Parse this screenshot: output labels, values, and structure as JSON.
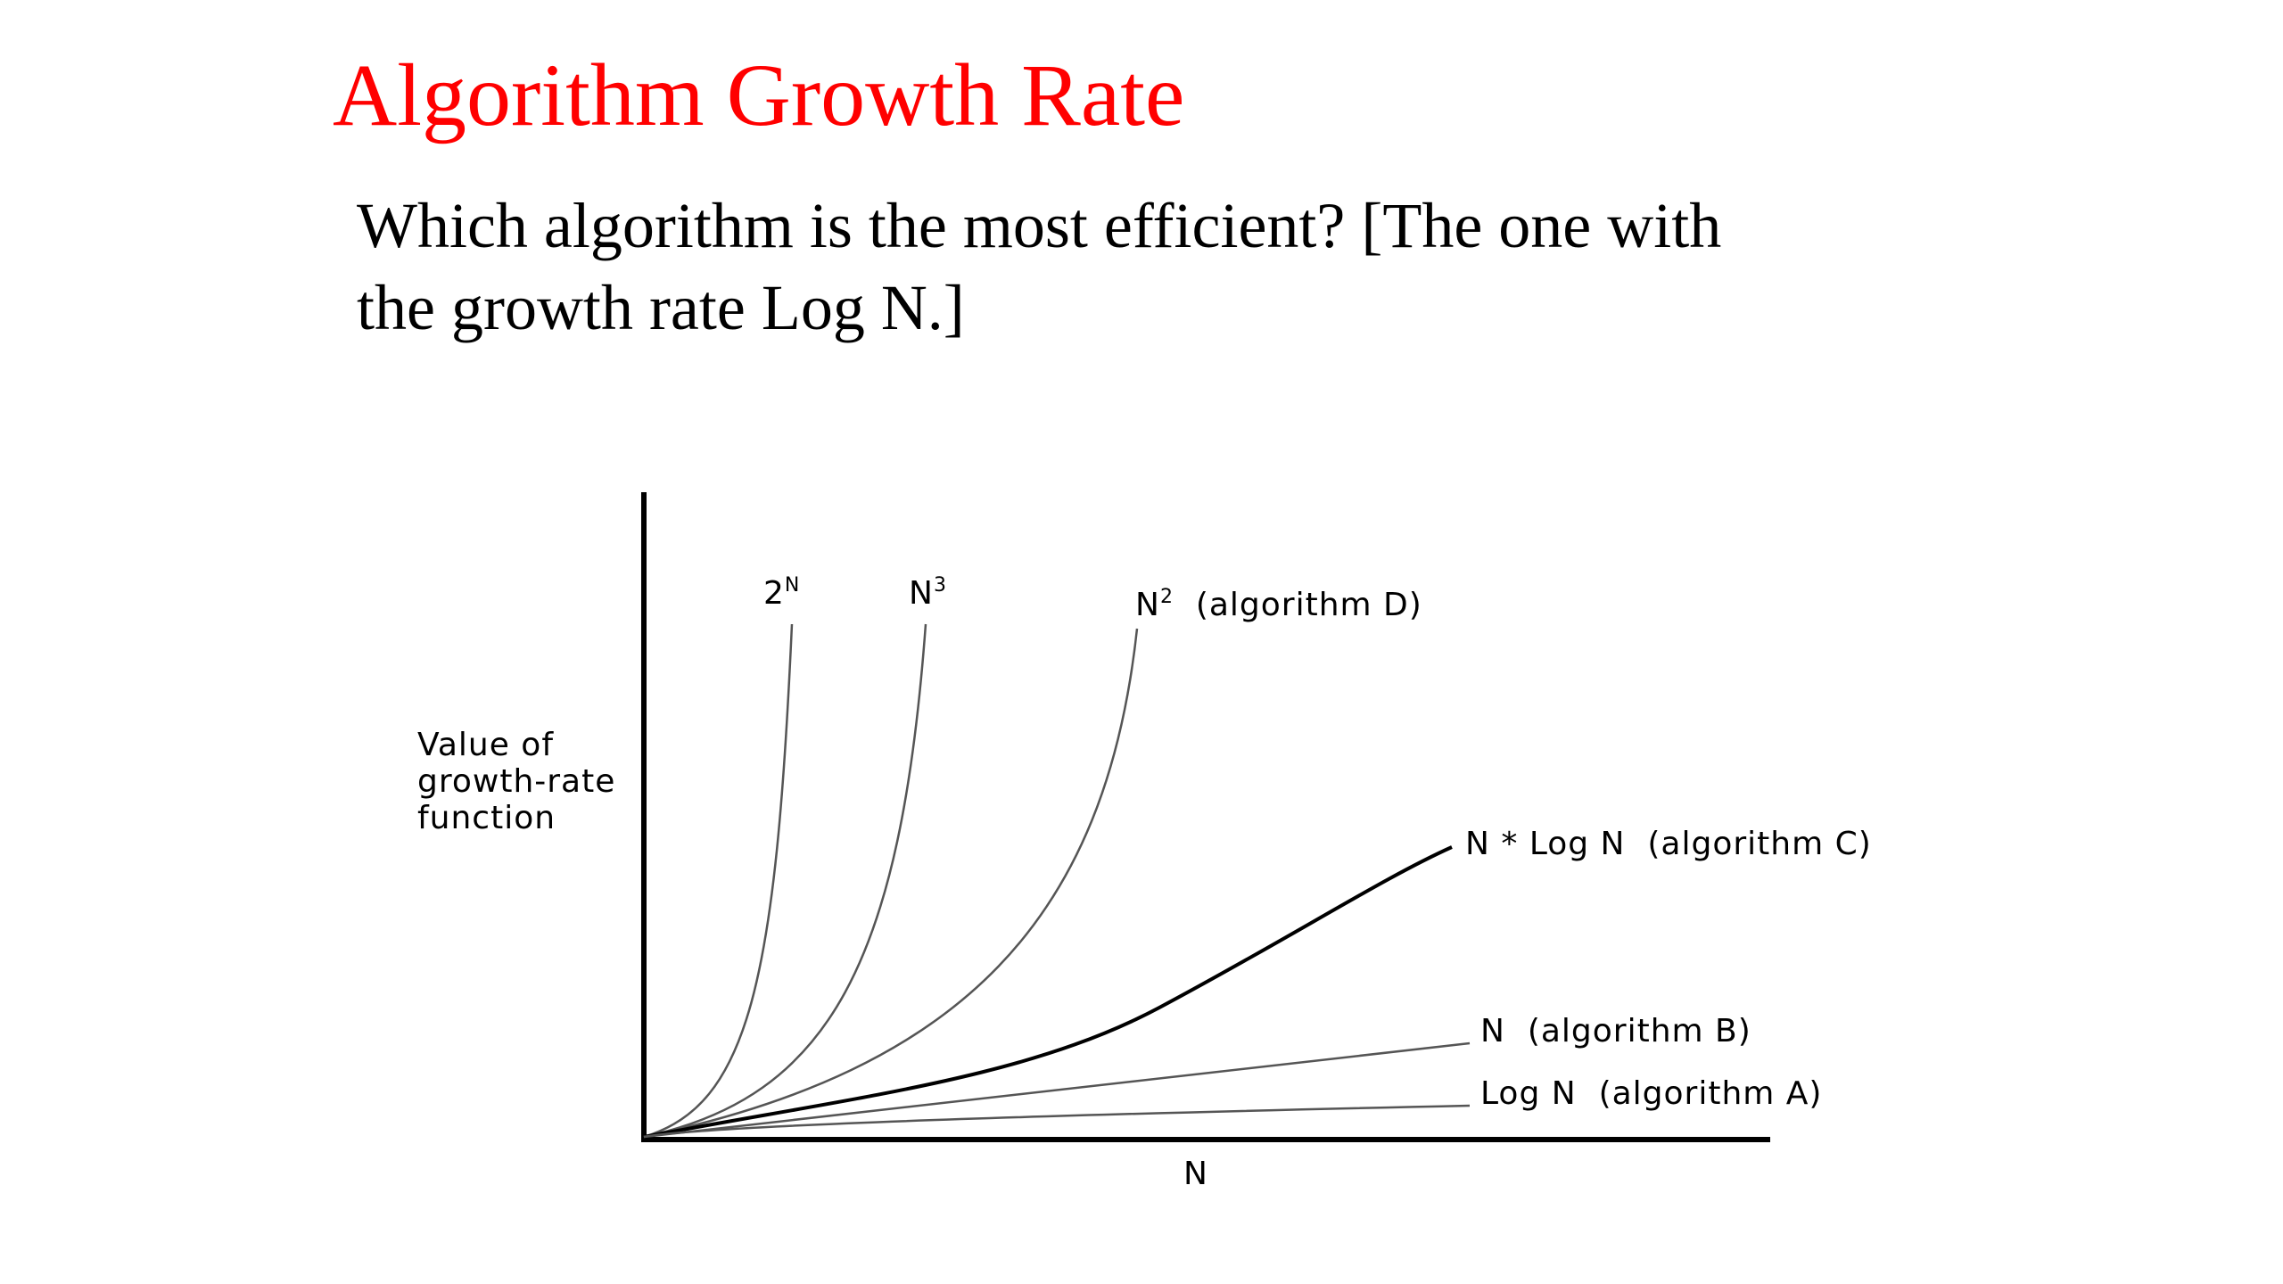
{
  "slide": {
    "title": "Algorithm Growth Rate",
    "question_line1": "Which algorithm is the most efficient? [The one with",
    "question_line2": "the growth rate Log N.]",
    "title_color": "#ff0000",
    "text_color": "#000000"
  },
  "diagram": {
    "y_axis_label": [
      "Value of",
      "growth-rate",
      "function"
    ],
    "x_axis_label": "N",
    "curves": [
      {
        "id": "exp",
        "base": "2",
        "superscript": "N",
        "suffix": "",
        "stroke": "#555555"
      },
      {
        "id": "cubic",
        "base": "N",
        "superscript": "3",
        "suffix": "",
        "stroke": "#555555"
      },
      {
        "id": "quadratic",
        "base": "N",
        "superscript": "2",
        "suffix": "  (algorithm D)",
        "stroke": "#555555"
      },
      {
        "id": "nlogn",
        "base": "N * Log N",
        "superscript": "",
        "suffix": "  (algorithm C)",
        "stroke": "#000000"
      },
      {
        "id": "linear",
        "base": "N",
        "superscript": "",
        "suffix": "  (algorithm B)",
        "stroke": "#555555"
      },
      {
        "id": "log",
        "base": "Log N",
        "superscript": "",
        "suffix": "  (algorithm A)",
        "stroke": "#555555"
      }
    ]
  }
}
